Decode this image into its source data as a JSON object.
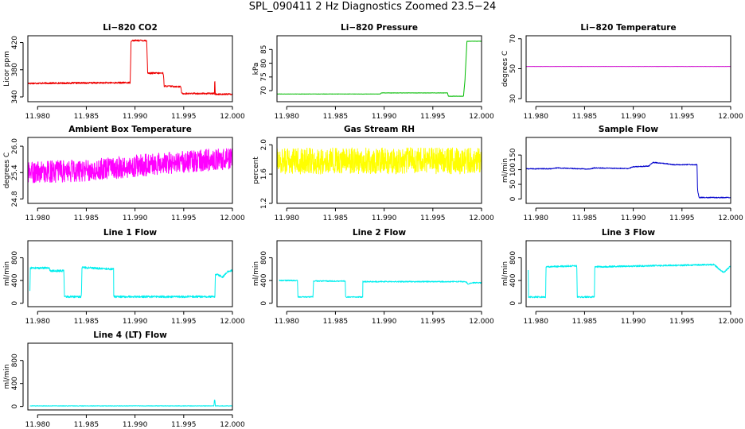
{
  "page_title": "SPL_090411  2 Hz Diagnostics Zoomed 23.5−24",
  "chart_data": [
    {
      "type": "line",
      "title": "Li−820 CO2",
      "ylabel": "Licor ppm",
      "color": "#ee0000",
      "xlim": [
        11.979,
        12.0
      ],
      "ylim": [
        333,
        430
      ],
      "xticks": [
        11.98,
        11.985,
        11.99,
        11.995,
        12.0
      ],
      "xtick_labels": [
        "11.980",
        "11.985",
        "11.990",
        "11.995",
        "12.000"
      ],
      "yticks": [
        340,
        380,
        420
      ],
      "ytick_labels": [
        "340",
        "380",
        "420"
      ],
      "series": [
        {
          "x": [
            11.979,
            11.9895,
            11.9896,
            11.9912,
            11.9913,
            11.9929,
            11.993,
            11.9947,
            11.9948,
            11.99817,
            11.99818,
            11.99822,
            11.99823,
            12.0
          ],
          "y": [
            360,
            361,
            423,
            423,
            375,
            375,
            356,
            355,
            345,
            345,
            362,
            362,
            344,
            344
          ],
          "noise": 1.2
        }
      ]
    },
    {
      "type": "line",
      "title": "Li−820 Pressure",
      "ylabel": "kPa",
      "color": "#00bb00",
      "xlim": [
        11.979,
        12.0
      ],
      "ylim": [
        66,
        90
      ],
      "xticks": [
        11.98,
        11.985,
        11.99,
        11.995,
        12.0
      ],
      "xtick_labels": [
        "11.980",
        "11.985",
        "11.990",
        "11.995",
        "12.000"
      ],
      "yticks": [
        70,
        75,
        80,
        85
      ],
      "ytick_labels": [
        "70",
        "75",
        "80",
        "85"
      ],
      "series": [
        {
          "x": [
            11.979,
            11.9896,
            11.9897,
            11.9965,
            11.9966,
            11.99815,
            11.9983,
            11.9985,
            12.0
          ],
          "y": [
            68.8,
            68.8,
            69.2,
            69.2,
            68.0,
            68.0,
            74,
            88,
            88
          ],
          "noise": 0.05
        }
      ]
    },
    {
      "type": "line",
      "title": "Li−820 Temperature",
      "ylabel": "degrees C",
      "color": "#cc00cc",
      "xlim": [
        11.979,
        12.0
      ],
      "ylim": [
        28,
        72
      ],
      "xticks": [
        11.98,
        11.985,
        11.99,
        11.995,
        12.0
      ],
      "xtick_labels": [
        "11.980",
        "11.985",
        "11.990",
        "11.995",
        "12.000"
      ],
      "yticks": [
        30,
        50,
        70
      ],
      "ytick_labels": [
        "30",
        "50",
        "70"
      ],
      "series": [
        {
          "x": [
            11.979,
            12.0
          ],
          "y": [
            51.5,
            51.5
          ],
          "noise": 0.05
        }
      ]
    },
    {
      "type": "line",
      "title": "Ambient Box Temperature",
      "ylabel": "degrees C",
      "color": "#ff00ff",
      "xlim": [
        11.979,
        12.0
      ],
      "ylim": [
        24.7,
        26.2
      ],
      "xticks": [
        11.98,
        11.985,
        11.99,
        11.995,
        12.0
      ],
      "xtick_labels": [
        "11.980",
        "11.985",
        "11.990",
        "11.995",
        "12.000"
      ],
      "yticks": [
        24.8,
        25.4,
        26.0
      ],
      "ytick_labels": [
        "24.8",
        "25.4",
        "26.0"
      ],
      "series": [
        {
          "x": [
            11.979,
            11.985,
            11.99,
            11.995,
            11.9985,
            12.0
          ],
          "y": [
            25.4,
            25.45,
            25.55,
            25.65,
            25.7,
            25.7
          ],
          "noise": 0.25
        }
      ]
    },
    {
      "type": "line",
      "title": "Gas Stream RH",
      "ylabel": "percent",
      "color": "#ffff00",
      "xlim": [
        11.979,
        12.0
      ],
      "ylim": [
        1.2,
        2.1
      ],
      "xticks": [
        11.98,
        11.985,
        11.99,
        11.995,
        12.0
      ],
      "xtick_labels": [
        "11.980",
        "11.985",
        "11.990",
        "11.995",
        "12.000"
      ],
      "yticks": [
        1.2,
        1.6,
        2.0
      ],
      "ytick_labels": [
        "1.2",
        "1.6",
        "2.0"
      ],
      "series": [
        {
          "x": [
            11.979,
            12.0
          ],
          "y": [
            1.78,
            1.78
          ],
          "noise": 0.18
        }
      ]
    },
    {
      "type": "line",
      "title": "Sample Flow",
      "ylabel": "ml/min",
      "color": "#0000cc",
      "xlim": [
        11.979,
        12.0
      ],
      "ylim": [
        -15,
        210
      ],
      "xticks": [
        11.98,
        11.985,
        11.99,
        11.995,
        12.0
      ],
      "xtick_labels": [
        "11.980",
        "11.985",
        "11.990",
        "11.995",
        "12.000"
      ],
      "yticks": [
        0,
        50,
        100,
        150
      ],
      "ytick_labels": [
        "0",
        "50",
        "100",
        "150"
      ],
      "series": [
        {
          "x": [
            11.979,
            11.9815,
            11.982,
            11.9855,
            11.986,
            11.9895,
            11.99,
            11.9916,
            11.992,
            11.9935,
            11.994,
            11.99655,
            11.9966,
            11.99675,
            12.0
          ],
          "y": [
            103,
            103,
            106,
            102,
            106,
            104,
            110,
            112,
            125,
            120,
            117,
            117,
            30,
            5,
            5
          ],
          "noise": 1.5
        }
      ]
    },
    {
      "type": "line",
      "title": "Line 1 Flow",
      "ylabel": "ml/min",
      "color": "#00eeee",
      "xlim": [
        11.979,
        12.0
      ],
      "ylim": [
        -60,
        1100
      ],
      "xticks": [
        11.98,
        11.985,
        11.99,
        11.995,
        12.0
      ],
      "xtick_labels": [
        "11.980",
        "11.985",
        "11.990",
        "11.995",
        "12.000"
      ],
      "yticks": [
        0,
        400,
        800
      ],
      "ytick_labels": [
        "0",
        "400",
        "800"
      ],
      "series": [
        {
          "x": [
            11.9792,
            11.97925,
            11.9812,
            11.9813,
            11.9827,
            11.98275,
            11.9845,
            11.98455,
            11.9878,
            11.97885,
            11.9982,
            11.99825,
            11.9988,
            11.999,
            11.9995,
            12.0
          ],
          "y": [
            110,
            620,
            620,
            570,
            570,
            115,
            115,
            630,
            600,
            115,
            115,
            510,
            480,
            460,
            550,
            580
          ],
          "noise": 18
        }
      ]
    },
    {
      "type": "line",
      "title": "Line 2 Flow",
      "ylabel": "ml/min",
      "color": "#00eeee",
      "xlim": [
        11.979,
        12.0
      ],
      "ylim": [
        -60,
        1100
      ],
      "xticks": [
        11.98,
        11.985,
        11.99,
        11.995,
        12.0
      ],
      "xtick_labels": [
        "11.980",
        "11.985",
        "11.990",
        "11.995",
        "12.000"
      ],
      "yticks": [
        0,
        400,
        800
      ],
      "ytick_labels": [
        "0",
        "400",
        "800"
      ],
      "series": [
        {
          "x": [
            11.9792,
            11.9811,
            11.98115,
            11.9827,
            11.98275,
            11.986,
            11.98605,
            11.9878,
            11.97885,
            11.9984,
            11.9986,
            11.9992,
            12.0
          ],
          "y": [
            400,
            400,
            110,
            110,
            390,
            390,
            110,
            110,
            380,
            380,
            340,
            360,
            360
          ],
          "noise": 10
        }
      ]
    },
    {
      "type": "line",
      "title": "Line 3 Flow",
      "ylabel": "ml/min",
      "color": "#00eeee",
      "xlim": [
        11.979,
        12.0
      ],
      "ylim": [
        -60,
        1100
      ],
      "xticks": [
        11.98,
        11.985,
        11.99,
        11.995,
        12.0
      ],
      "xtick_labels": [
        "11.980",
        "11.985",
        "11.990",
        "11.995",
        "12.000"
      ],
      "yticks": [
        0,
        400,
        800
      ],
      "ytick_labels": [
        "0",
        "400",
        "800"
      ],
      "series": [
        {
          "x": [
            11.9792,
            11.97925,
            11.9795,
            11.981,
            11.98105,
            11.9842,
            11.98425,
            11.986,
            11.98605,
            11.9983,
            11.9988,
            11.9993,
            12.0
          ],
          "y": [
            690,
            110,
            110,
            110,
            640,
            660,
            110,
            110,
            640,
            680,
            600,
            540,
            660
          ],
          "noise": 14
        }
      ]
    },
    {
      "type": "line",
      "title": "Line 4 (LT) Flow",
      "ylabel": "ml/min",
      "color": "#00eeee",
      "xlim": [
        11.979,
        12.0
      ],
      "ylim": [
        -60,
        1100
      ],
      "xticks": [
        11.98,
        11.985,
        11.99,
        11.995,
        12.0
      ],
      "xtick_labels": [
        "11.980",
        "11.985",
        "11.990",
        "11.995",
        "12.000"
      ],
      "yticks": [
        0,
        400,
        800
      ],
      "ytick_labels": [
        "0",
        "400",
        "800"
      ],
      "series": [
        {
          "x": [
            11.9792,
            11.9981,
            11.99815,
            11.9982,
            11.99825,
            12.0
          ],
          "y": [
            10,
            10,
            110,
            110,
            10,
            10
          ],
          "noise": 4
        }
      ]
    }
  ]
}
